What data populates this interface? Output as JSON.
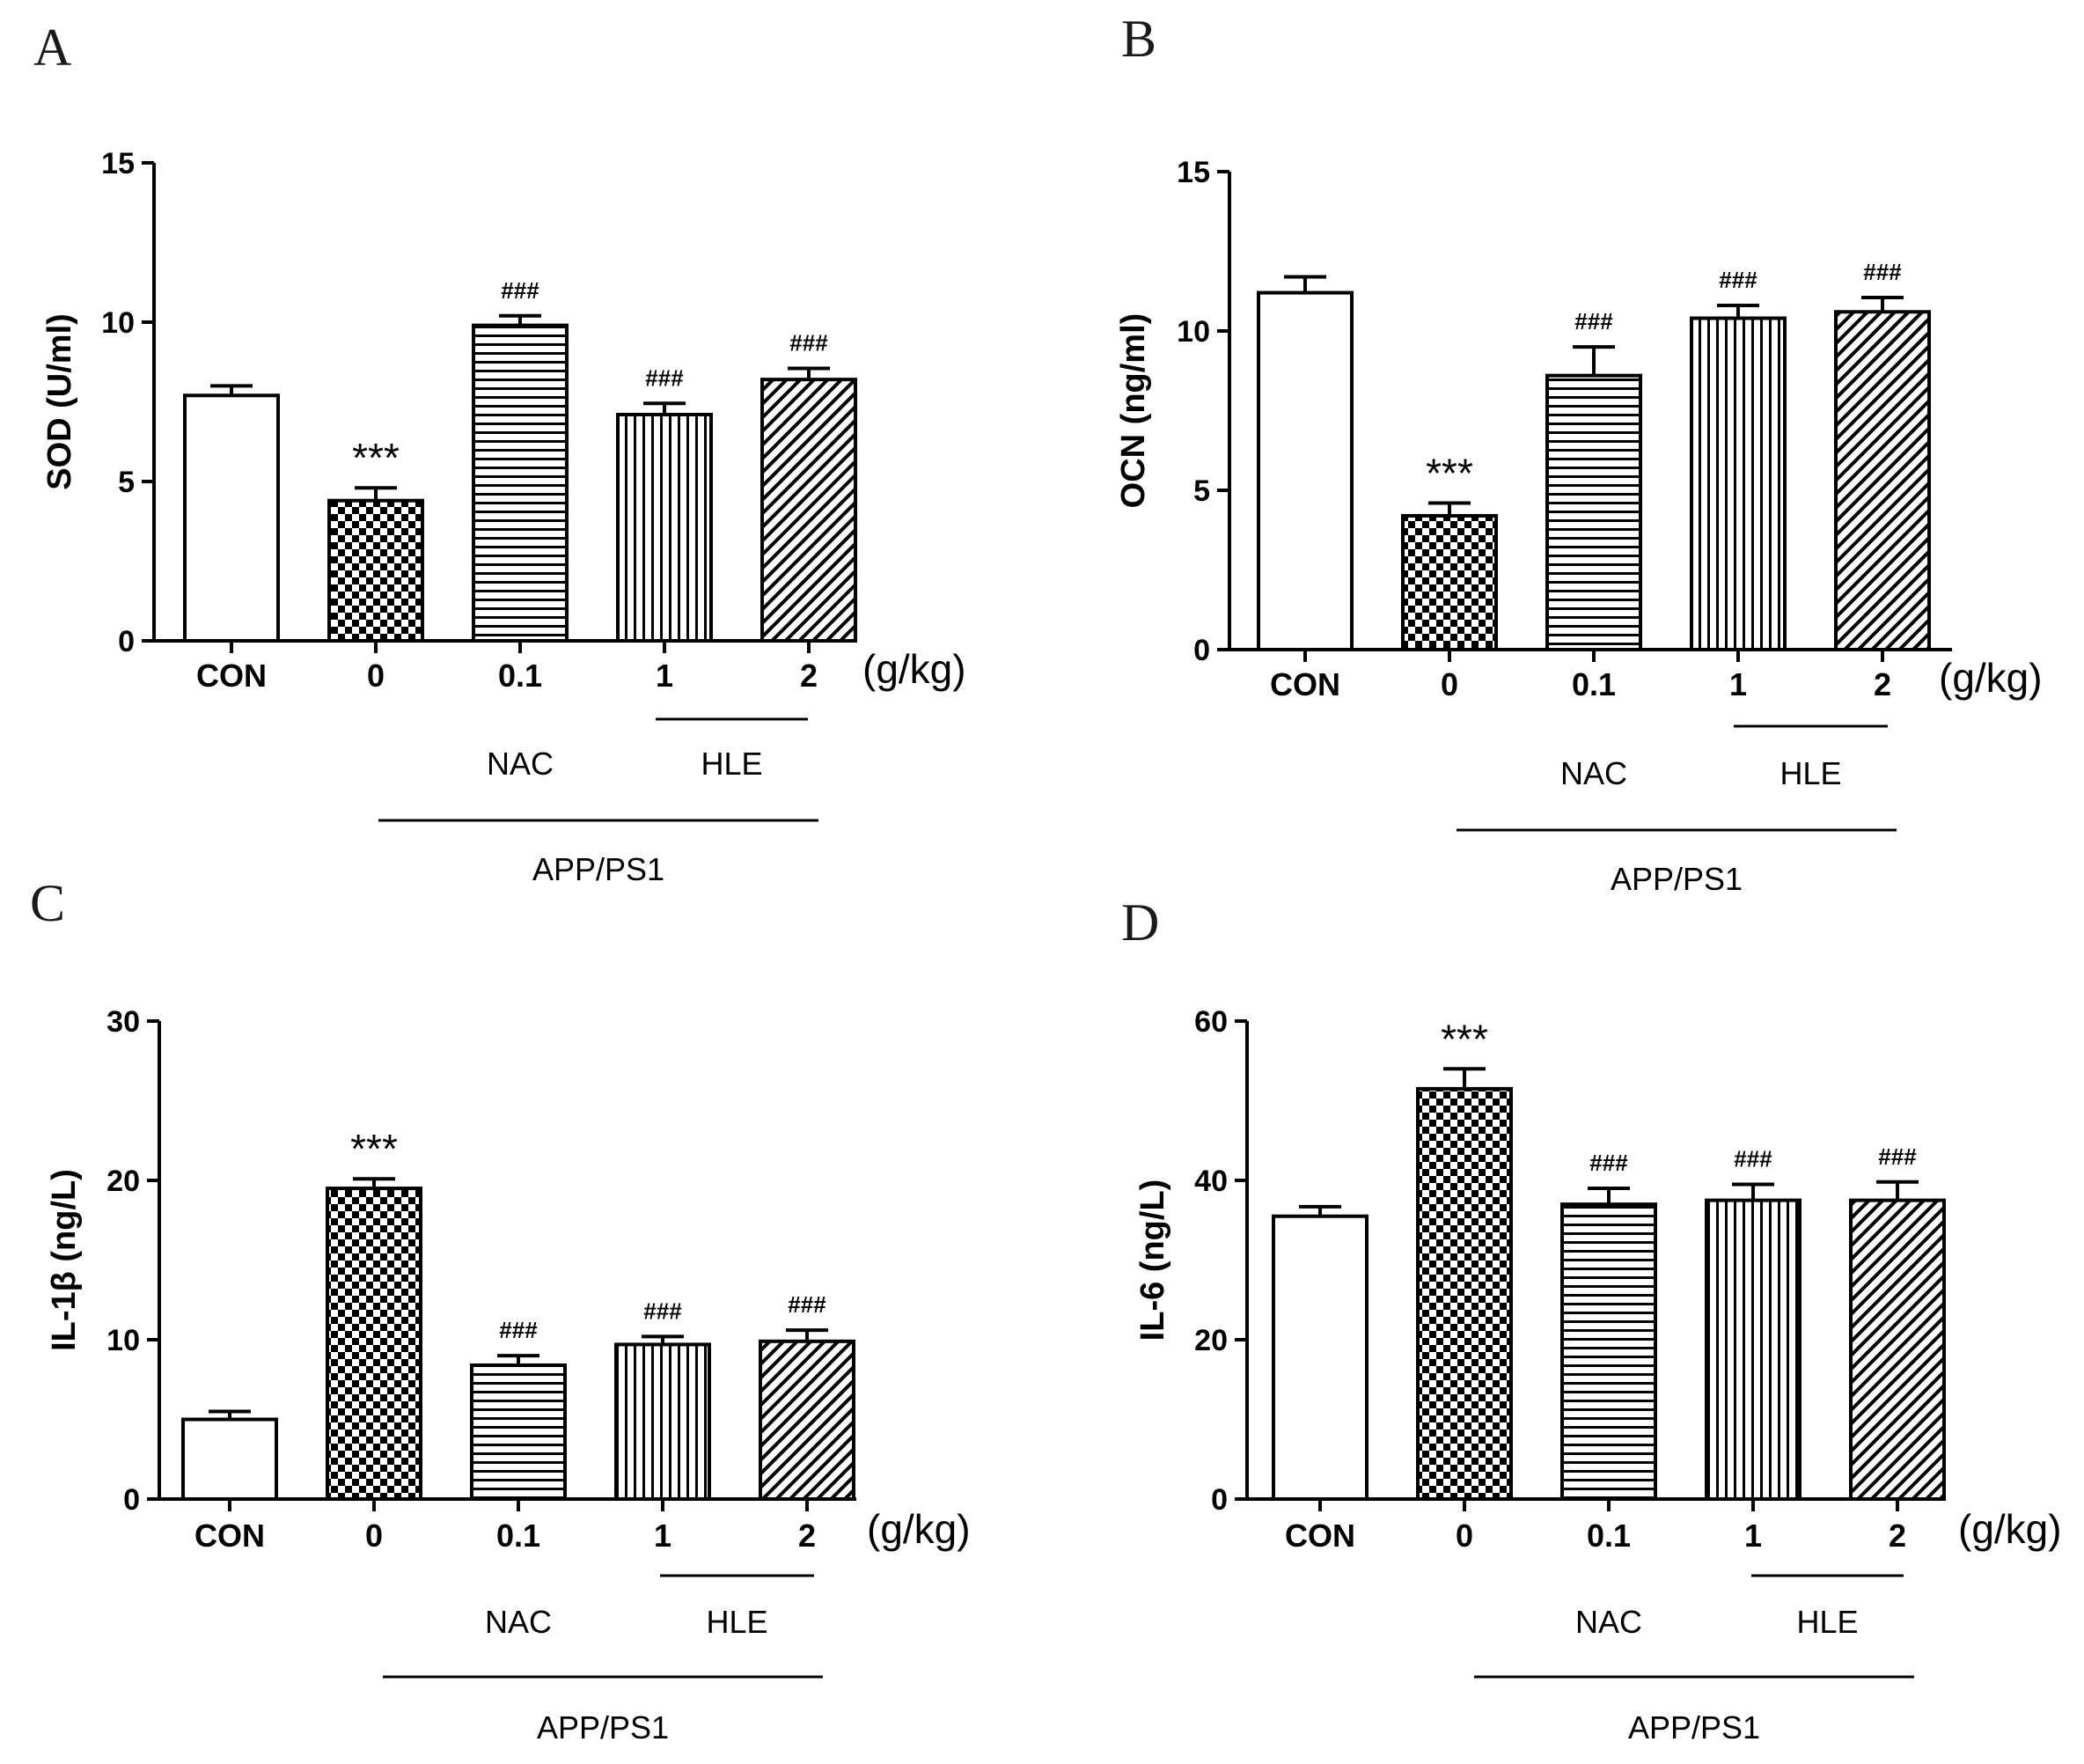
{
  "figure": {
    "unit_label": "(g/kg)",
    "group_labels": {
      "nac": "NAC",
      "hle": "HLE",
      "model": "APP/PS1"
    }
  },
  "patterns": [
    "white",
    "checker",
    "hlines",
    "vlines",
    "diag"
  ],
  "chart_data": [
    {
      "panel": "A",
      "type": "bar",
      "ylabel": "SOD (U/ml)",
      "ylim": [
        0,
        15
      ],
      "yticks": [
        0,
        5,
        10,
        15
      ],
      "categories": [
        "CON",
        "0",
        "0.1",
        "1",
        "2"
      ],
      "values": [
        7.7,
        4.4,
        9.9,
        7.1,
        8.2
      ],
      "errors": [
        0.3,
        0.4,
        0.3,
        0.35,
        0.35
      ],
      "annotations": [
        "",
        "***",
        "###",
        "###",
        "###"
      ]
    },
    {
      "panel": "B",
      "type": "bar",
      "ylabel": "OCN (ng/ml)",
      "ylim": [
        0,
        15
      ],
      "yticks": [
        0,
        5,
        10,
        15
      ],
      "categories": [
        "CON",
        "0",
        "0.1",
        "1",
        "2"
      ],
      "values": [
        11.2,
        4.2,
        8.6,
        10.4,
        10.6
      ],
      "errors": [
        0.5,
        0.4,
        0.9,
        0.4,
        0.45
      ],
      "annotations": [
        "",
        "***",
        "###",
        "###",
        "###"
      ]
    },
    {
      "panel": "C",
      "type": "bar",
      "ylabel": "IL-1β (ng/L)",
      "ylim": [
        0,
        30
      ],
      "yticks": [
        0,
        10,
        20,
        30
      ],
      "categories": [
        "CON",
        "0",
        "0.1",
        "1",
        "2"
      ],
      "values": [
        5.0,
        19.5,
        8.4,
        9.7,
        9.9
      ],
      "errors": [
        0.5,
        0.6,
        0.6,
        0.5,
        0.7
      ],
      "annotations": [
        "",
        "***",
        "###",
        "###",
        "###"
      ]
    },
    {
      "panel": "D",
      "type": "bar",
      "ylabel": "IL-6 (ng/L)",
      "ylim": [
        0,
        60
      ],
      "yticks": [
        0,
        20,
        40,
        60
      ],
      "categories": [
        "CON",
        "0",
        "0.1",
        "1",
        "2"
      ],
      "values": [
        35.5,
        51.5,
        37.0,
        37.5,
        37.5
      ],
      "errors": [
        1.2,
        2.5,
        2.0,
        2.0,
        2.3
      ],
      "annotations": [
        "",
        "***",
        "###",
        "###",
        "###"
      ]
    }
  ]
}
